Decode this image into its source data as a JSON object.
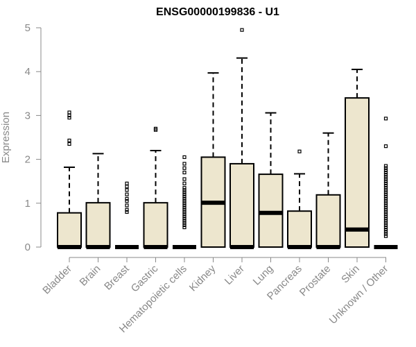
{
  "chart_data": {
    "type": "box",
    "title": "ENSG00000199836 - U1",
    "xlabel": "",
    "ylabel": "Expression",
    "ylim": [
      0,
      5
    ],
    "yticks": [
      "0",
      "1",
      "2",
      "3",
      "4",
      "5"
    ],
    "grid": false,
    "box_fill": "#ede6ce",
    "categories": [
      "Bladder",
      "Brain",
      "Breast",
      "Gastric",
      "Hematopoietic cells",
      "Kidney",
      "Liver",
      "Lung",
      "Pancreas",
      "Prostate",
      "Skin",
      "Unknown / Other"
    ],
    "boxes": [
      {
        "q1": 0,
        "median": 0,
        "q3": 0.78,
        "whisker_low": 0,
        "whisker_high": 1.82,
        "outliers": [
          2.35,
          2.43,
          2.95,
          3.0,
          3.07
        ]
      },
      {
        "q1": 0,
        "median": 0,
        "q3": 1.01,
        "whisker_low": 0,
        "whisker_high": 2.13,
        "outliers": []
      },
      {
        "q1": 0,
        "median": 0,
        "q3": 0,
        "whisker_low": 0,
        "whisker_high": 0,
        "outliers": [
          0.8,
          0.85,
          0.95,
          1.05,
          1.1,
          1.2,
          1.3,
          1.38,
          1.45
        ]
      },
      {
        "q1": 0,
        "median": 0,
        "q3": 1.01,
        "whisker_low": 0,
        "whisker_high": 2.2,
        "outliers": [
          2.67,
          2.7
        ]
      },
      {
        "q1": 0,
        "median": 0,
        "q3": 0,
        "whisker_low": 0,
        "whisker_high": 0,
        "outliers": [
          0.45,
          0.5,
          0.55,
          0.6,
          0.65,
          0.7,
          0.75,
          0.8,
          0.85,
          0.9,
          0.95,
          1.0,
          1.05,
          1.1,
          1.15,
          1.2,
          1.25,
          1.3,
          1.35,
          1.45,
          1.55,
          1.7,
          1.8,
          1.9,
          2.05
        ]
      },
      {
        "q1": 0,
        "median": 1.01,
        "q3": 2.05,
        "whisker_low": 0,
        "whisker_high": 3.97,
        "outliers": []
      },
      {
        "q1": 0,
        "median": 0,
        "q3": 1.9,
        "whisker_low": 0,
        "whisker_high": 4.31,
        "outliers": [
          4.95
        ]
      },
      {
        "q1": 0,
        "median": 0.78,
        "q3": 1.66,
        "whisker_low": 0,
        "whisker_high": 3.06,
        "outliers": []
      },
      {
        "q1": 0,
        "median": 0,
        "q3": 0.82,
        "whisker_low": 0,
        "whisker_high": 1.67,
        "outliers": [
          2.18
        ]
      },
      {
        "q1": 0,
        "median": 0,
        "q3": 1.19,
        "whisker_low": 0,
        "whisker_high": 2.6,
        "outliers": []
      },
      {
        "q1": 0,
        "median": 0.4,
        "q3": 3.4,
        "whisker_low": 0,
        "whisker_high": 4.05,
        "outliers": []
      },
      {
        "q1": 0,
        "median": 0,
        "q3": 0,
        "whisker_low": 0,
        "whisker_high": 0,
        "outliers": [
          0.25,
          0.3,
          0.35,
          0.4,
          0.45,
          0.5,
          0.55,
          0.6,
          0.65,
          0.7,
          0.75,
          0.8,
          0.85,
          0.9,
          0.95,
          1.0,
          1.05,
          1.1,
          1.15,
          1.2,
          1.25,
          1.3,
          1.35,
          1.4,
          1.45,
          1.5,
          1.55,
          1.6,
          1.65,
          1.7,
          1.75,
          1.8,
          1.85,
          2.3,
          2.93
        ]
      }
    ]
  }
}
